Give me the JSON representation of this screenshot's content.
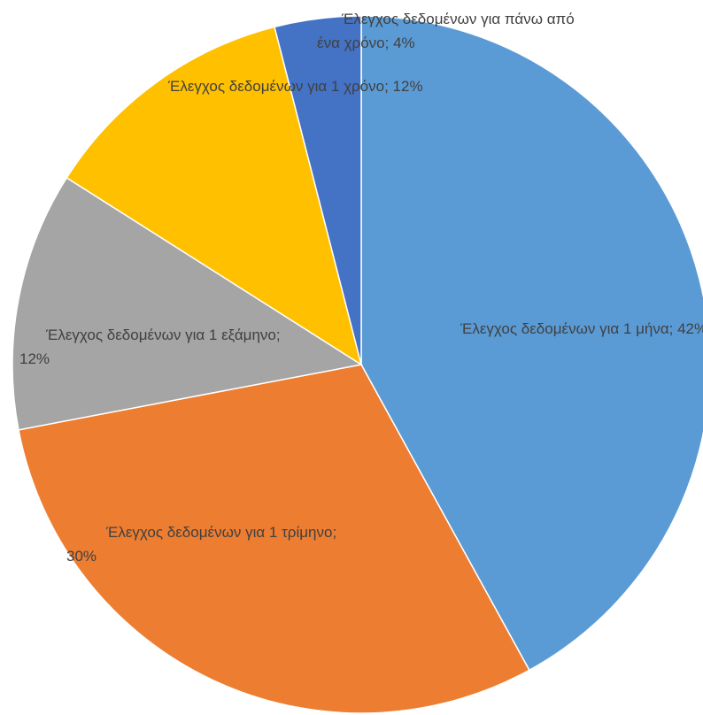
{
  "chart_data": {
    "type": "pie",
    "categories": [
      "Έλεγχος δεδομένων για 1 μήνα",
      "Έλεγχος δεδομένων για 1 τρίμηνο",
      "Έλεγχος δεδομένων για 1 εξάμηνο",
      "Έλεγχος δεδομένων για 1 χρόνο",
      "Έλεγχος δεδομένων για πάνω από ένα χρόνο"
    ],
    "values": [
      42,
      30,
      12,
      12,
      4
    ],
    "value_labels": [
      "Έλεγχος δεδομένων για 1 μήνα; 42%",
      "Έλεγχος δεδομένων για 1 τρίμηνο; 30%",
      "Έλεγχος δεδομένων για 1 εξάμηνο; 12%",
      "Έλεγχος δεδομένων για 1 χρόνο; 12%",
      "Έλεγχος δεδομένων για πάνω από ένα χρόνο; 4%"
    ],
    "colors": [
      "#5b9bd5",
      "#ed7d31",
      "#a5a5a5",
      "#ffc000",
      "#4472c4"
    ]
  }
}
